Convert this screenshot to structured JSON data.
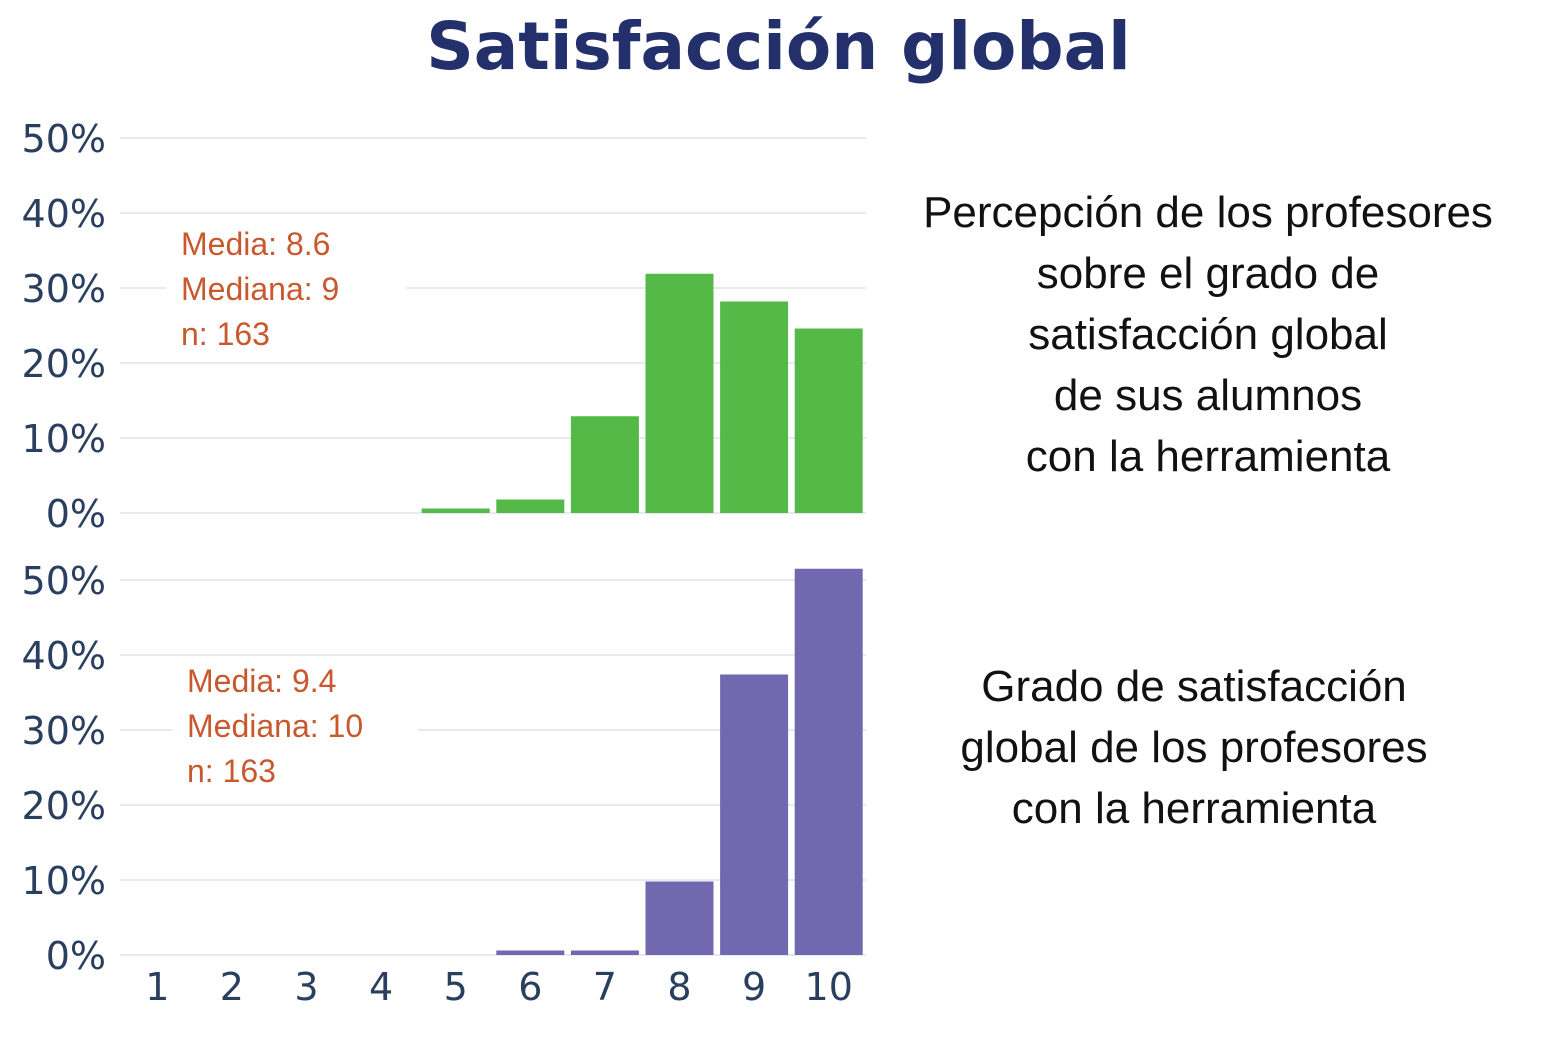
{
  "title": "Satisfacción global",
  "colors": {
    "title": "#24306b",
    "top_bars": "#54b947",
    "bottom_bars": "#7268b0",
    "stats": "#c8582d"
  },
  "chart_data": [
    {
      "type": "bar",
      "title": "Percepción de los profesores sobre el grado de satisfacción global de sus alumnos con la herramienta",
      "description_lines": [
        "Percepción de los profesores",
        "sobre el grado de",
        "satisfacción global",
        "de sus alumnos",
        "con la herramienta"
      ],
      "categories": [
        "1",
        "2",
        "3",
        "4",
        "5",
        "6",
        "7",
        "8",
        "9",
        "10"
      ],
      "values": [
        0,
        0,
        0,
        0,
        0.6,
        1.8,
        12.9,
        31.9,
        28.2,
        24.6
      ],
      "ylim": [
        0,
        50
      ],
      "yticks": [
        "0%",
        "10%",
        "20%",
        "30%",
        "40%",
        "50%"
      ],
      "stats": [
        "Media:      8.6",
        "Mediana:  9",
        "n: 163"
      ],
      "color": "#54b947"
    },
    {
      "type": "bar",
      "title": "Grado de satisfacción global de los profesores con la herramienta",
      "description_lines": [
        "Grado de satisfacción",
        "global de los profesores",
        "con la herramienta"
      ],
      "categories": [
        "1",
        "2",
        "3",
        "4",
        "5",
        "6",
        "7",
        "8",
        "9",
        "10"
      ],
      "values": [
        0,
        0,
        0,
        0,
        0,
        0.6,
        0.6,
        9.8,
        37.4,
        51.5
      ],
      "ylim": [
        0,
        50
      ],
      "yticks": [
        "0%",
        "10%",
        "20%",
        "30%",
        "40%",
        "50%"
      ],
      "xticks": [
        "1",
        "2",
        "3",
        "4",
        "5",
        "6",
        "7",
        "8",
        "9",
        "10"
      ],
      "stats": [
        "Media:      9.4",
        "Mediana:  10",
        "n: 163"
      ],
      "color": "#7268b0"
    }
  ]
}
